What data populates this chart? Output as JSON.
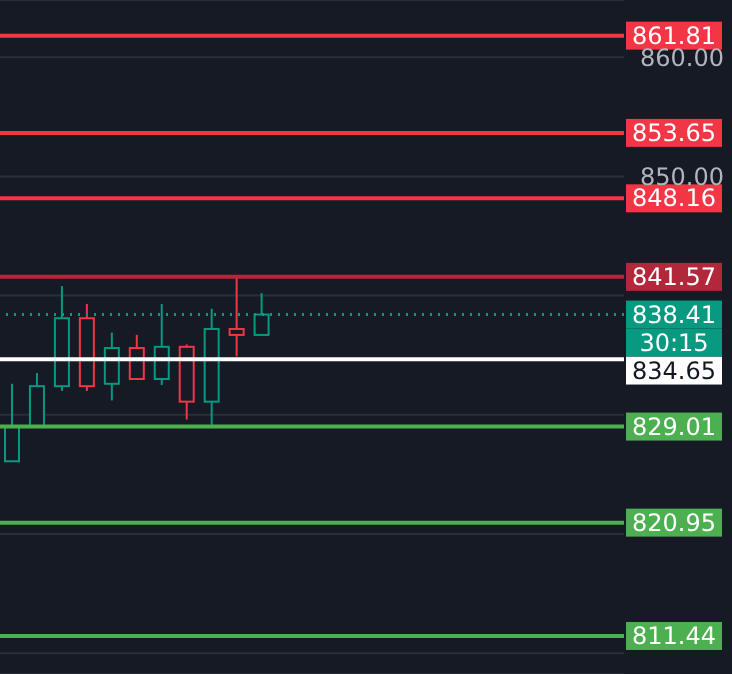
{
  "chart_data": {
    "type": "candlestick",
    "categories": [
      null,
      null,
      null,
      null,
      null,
      null,
      null,
      null,
      null,
      null,
      null,
      null,
      null,
      null,
      null,
      null,
      null,
      null,
      null,
      null,
      null,
      null,
      null,
      null,
      null
    ],
    "ohlc": [
      [
        826.1,
        832.6,
        826.1,
        829.0
      ],
      [
        829.0,
        833.5,
        829.0,
        832.4
      ],
      [
        832.4,
        840.8,
        832.0,
        838.1
      ],
      [
        838.1,
        839.3,
        832.0,
        832.4
      ],
      [
        832.6,
        836.9,
        831.2,
        835.6
      ],
      [
        835.6,
        836.7,
        833.0,
        833.0
      ],
      [
        833.0,
        839.3,
        832.5,
        835.7
      ],
      [
        835.7,
        835.9,
        829.6,
        831.1
      ],
      [
        831.1,
        838.9,
        829.0,
        837.2
      ],
      [
        837.2,
        841.6,
        834.9,
        836.7
      ],
      [
        836.7,
        840.2,
        836.7,
        838.41
      ],
      null,
      null,
      null,
      null,
      null,
      null,
      null,
      null,
      null,
      null,
      null,
      null,
      null,
      null
    ],
    "colors": [
      "#089981",
      "#089981",
      "#089981",
      "#f23645",
      "#089981",
      "#f23645",
      "#089981",
      "#f23645",
      "#089981",
      "#f23645",
      "#089981",
      null,
      null,
      null,
      null,
      null,
      null,
      null,
      null,
      null,
      null,
      null,
      null,
      null,
      null
    ],
    "ylim": [
      808.25,
      864.8
    ],
    "yticks": [
      {
        "value": 810,
        "label": null
      },
      {
        "value": 820,
        "label": null
      },
      {
        "value": 830,
        "label": null
      },
      {
        "value": 840,
        "label": null
      },
      {
        "value": 850,
        "label": "850.00"
      },
      {
        "value": 860,
        "label": "860.00"
      }
    ],
    "grid": "y",
    "ref_lines": [
      {
        "axis": "y",
        "value": 861.81,
        "label": "861.81",
        "color": "#f23645"
      },
      {
        "axis": "y",
        "value": 853.65,
        "label": "853.65",
        "color": "#f23645"
      },
      {
        "axis": "y",
        "value": 848.16,
        "label": "848.16",
        "color": "#f23645"
      },
      {
        "axis": "y",
        "value": 841.57,
        "label": "841.57",
        "color": "#b2283a"
      },
      {
        "axis": "y",
        "value": 838.41,
        "label": "838.41",
        "color": "#089981",
        "line_style": "dotted"
      },
      {
        "axis": "y",
        "value": 834.65,
        "label": "834.65",
        "color": "#ffffff"
      },
      {
        "axis": "y",
        "value": 829.01,
        "label": "829.01",
        "color": "#4caf50"
      },
      {
        "axis": "y",
        "value": 820.95,
        "label": "820.95",
        "color": "#4caf50"
      },
      {
        "axis": "y",
        "value": 811.44,
        "label": "811.44",
        "color": "#4caf50"
      }
    ],
    "annotations": [
      "30:15"
    ]
  }
}
